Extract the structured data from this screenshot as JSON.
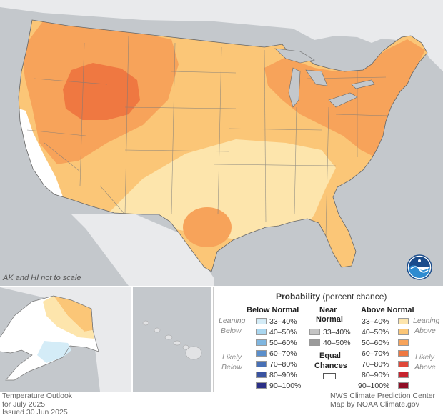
{
  "map": {
    "scale_note": "AK and HI not to scale",
    "logo_icon": "noaa-logo",
    "colors": {
      "ocean": "#c4c8cc",
      "land_other": "#e9eaec",
      "equal_chances": "#ffffff",
      "above_33_40": "#fde5ac",
      "above_40_50": "#fbc677",
      "above_50_60": "#f7a35a",
      "above_60_70": "#ef7841",
      "below_33_40": "#d4ecf7"
    }
  },
  "legend": {
    "title_bold": "Probability",
    "title_rest": " (percent chance)",
    "below_header": "Below Normal",
    "near_header_1": "Near",
    "near_header_2": "Normal",
    "above_header": "Above Normal",
    "leaning_below_1": "Leaning",
    "leaning_below_2": "Below",
    "likely_below_1": "Likely",
    "likely_below_2": "Below",
    "leaning_above_1": "Leaning",
    "leaning_above_2": "Above",
    "likely_above_1": "Likely",
    "likely_above_2": "Above",
    "equal_1": "Equal",
    "equal_2": "Chances",
    "below_items": [
      {
        "label": "33–40%",
        "color": "#d4ecf7"
      },
      {
        "label": "40–50%",
        "color": "#a9d6ef"
      },
      {
        "label": "50–60%",
        "color": "#7fb6e0"
      },
      {
        "label": "60–70%",
        "color": "#5a8fcc"
      },
      {
        "label": "70–80%",
        "color": "#4870b5"
      },
      {
        "label": "80–90%",
        "color": "#3a53a0"
      },
      {
        "label": "90–100%",
        "color": "#2b2f86"
      }
    ],
    "near_items": [
      {
        "label": "33–40%",
        "color": "#c4c4c4"
      },
      {
        "label": "40–50%",
        "color": "#9a9a9a"
      }
    ],
    "above_items": [
      {
        "label": "33–40%",
        "color": "#fde5ac"
      },
      {
        "label": "40–50%",
        "color": "#fbc677"
      },
      {
        "label": "50–60%",
        "color": "#f7a35a"
      },
      {
        "label": "60–70%",
        "color": "#ef7841"
      },
      {
        "label": "70–80%",
        "color": "#e0483a"
      },
      {
        "label": "80–90%",
        "color": "#c7242f"
      },
      {
        "label": "90–100%",
        "color": "#8f0d25"
      }
    ]
  },
  "footer": {
    "left_1": "Temperature Outlook",
    "left_2": "for July 2025",
    "left_3": "Issued 30 Jun 2025",
    "right_1": "NWS Climate Prediction Center",
    "right_2": "Map by NOAA Climate.gov"
  }
}
